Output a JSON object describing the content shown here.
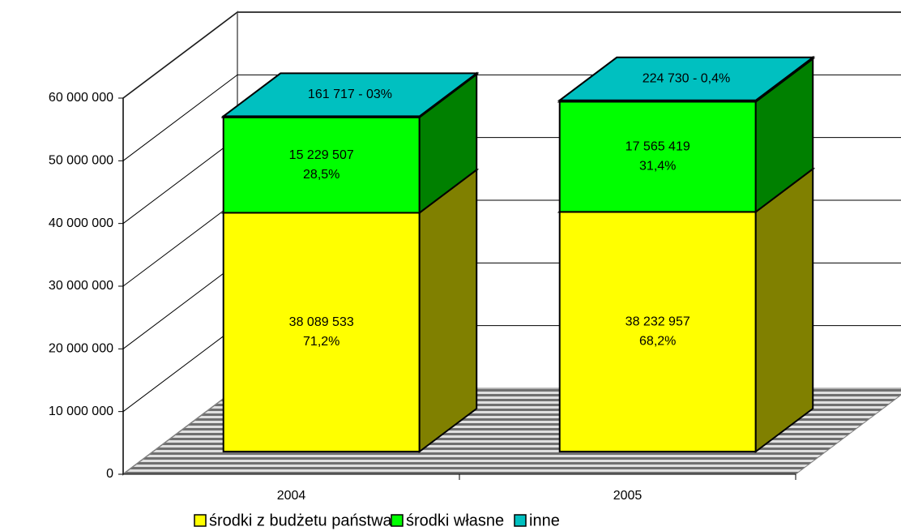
{
  "chart_data": {
    "type": "bar3d_stacked",
    "categories": [
      "2004",
      "2005"
    ],
    "series": [
      {
        "name": "środki z budżetu państwa",
        "color": "#ffff00",
        "side_color": "#808000",
        "values": [
          38089533,
          38232957
        ],
        "value_labels": [
          "38 089 533",
          "38 232 957"
        ],
        "share_labels": [
          "71,2%",
          "68,2%"
        ]
      },
      {
        "name": "środki własne",
        "color": "#00ff00",
        "side_color": "#008000",
        "values": [
          15229507,
          17565419
        ],
        "value_labels": [
          "15 229 507",
          "17 565 419"
        ],
        "share_labels": [
          "28,5%",
          "31,4%"
        ]
      },
      {
        "name": "inne",
        "color": "#00c0c0",
        "side_color": "#008080",
        "values": [
          161717,
          224730
        ],
        "value_labels": [
          "161 717 - 03%",
          "224 730 - 0,4%"
        ]
      }
    ],
    "ylim": [
      0,
      60000000
    ],
    "yticks": [
      0,
      {
        "value": 10000000,
        "label": "10 000 000"
      },
      {
        "value": 20000000,
        "label": "20 000 000"
      },
      {
        "value": 30000000,
        "label": "30 000 000"
      },
      {
        "value": 40000000,
        "label": "40 000 000"
      },
      {
        "value": 50000000,
        "label": "50 000 000"
      },
      {
        "value": 60000000,
        "label": "60 000 000"
      }
    ],
    "grid": true,
    "legend": "bottom"
  }
}
